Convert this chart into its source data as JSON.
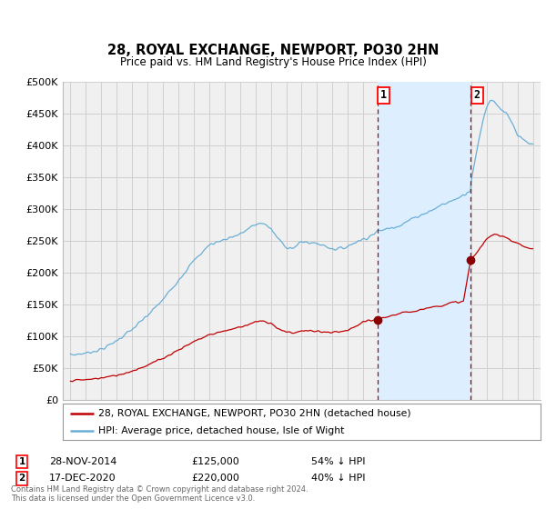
{
  "title": "28, ROYAL EXCHANGE, NEWPORT, PO30 2HN",
  "subtitle": "Price paid vs. HM Land Registry's House Price Index (HPI)",
  "hpi_label": "HPI: Average price, detached house, Isle of Wight",
  "price_label": "28, ROYAL EXCHANGE, NEWPORT, PO30 2HN (detached house)",
  "footnote": "Contains HM Land Registry data © Crown copyright and database right 2024.\nThis data is licensed under the Open Government Licence v3.0.",
  "sale1": {
    "date": 2014.92,
    "price": 125000,
    "label": "1",
    "text": "28-NOV-2014",
    "amount": "£125,000",
    "note": "54% ↓ HPI"
  },
  "sale2": {
    "date": 2020.97,
    "price": 220000,
    "label": "2",
    "text": "17-DEC-2020",
    "amount": "£220,000",
    "note": "40% ↓ HPI"
  },
  "hpi_color": "#6aaed6",
  "price_color": "#c00000",
  "vline_color": "#c00000",
  "dot_color": "#8b0000",
  "grid_color": "#d0d0d0",
  "background_color": "#ffffff",
  "plot_bg_color": "#f0f0f0",
  "shade_color": "#ddeeff",
  "ylim": [
    0,
    500000
  ],
  "xlim": [
    1994.5,
    2025.5
  ],
  "yticks": [
    0,
    50000,
    100000,
    150000,
    200000,
    250000,
    300000,
    350000,
    400000,
    450000,
    500000
  ],
  "ytick_labels": [
    "£0",
    "£50K",
    "£100K",
    "£150K",
    "£200K",
    "£250K",
    "£300K",
    "£350K",
    "£400K",
    "£450K",
    "£500K"
  ],
  "xticks": [
    1995,
    1996,
    1997,
    1998,
    1999,
    2000,
    2001,
    2002,
    2003,
    2004,
    2005,
    2006,
    2007,
    2008,
    2009,
    2010,
    2011,
    2012,
    2013,
    2014,
    2015,
    2016,
    2017,
    2018,
    2019,
    2020,
    2021,
    2022,
    2023,
    2024,
    2025
  ]
}
